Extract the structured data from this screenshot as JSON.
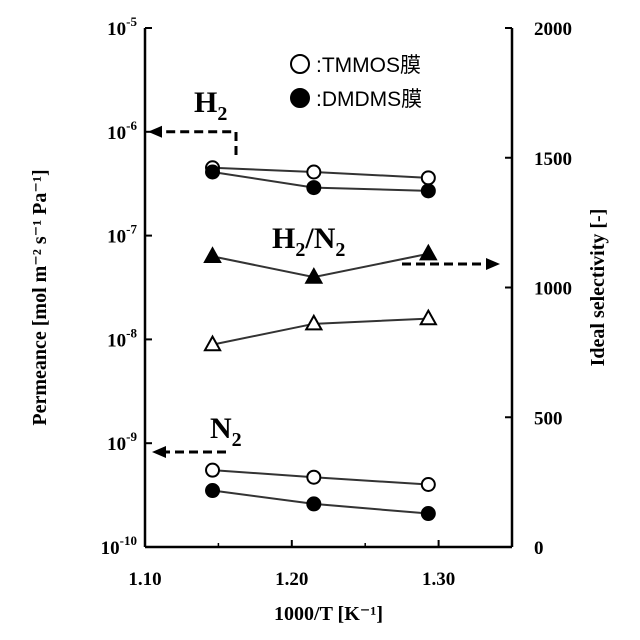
{
  "chart_data": {
    "type": "line",
    "xlabel": "1000/T [K⁻¹]",
    "xlim": [
      1.1,
      1.35
    ],
    "x_ticks": [
      "1.10",
      "1.20",
      "1.30"
    ],
    "x_tick_values": [
      1.1,
      1.2,
      1.3
    ],
    "ylabel_left": "Permeance [mol m⁻² s⁻¹ Pa⁻¹]",
    "y_left_scale": "log",
    "y_left_lim": [
      1e-10,
      1e-05
    ],
    "y_left_ticks": [
      {
        "base": "10",
        "exp": "-5"
      },
      {
        "base": "10",
        "exp": "-6"
      },
      {
        "base": "10",
        "exp": "-7"
      },
      {
        "base": "10",
        "exp": "-8"
      },
      {
        "base": "10",
        "exp": "-9"
      },
      {
        "base": "10",
        "exp": "-10"
      }
    ],
    "y_left_tick_values": [
      1e-05,
      1e-06,
      1e-07,
      1e-08,
      1e-09,
      1e-10
    ],
    "ylabel_right": "Ideal selectivity [-]",
    "y_right_scale": "linear",
    "y_right_lim": [
      0,
      2000
    ],
    "y_right_ticks": [
      "2000",
      "1500",
      "1000",
      "500",
      "0"
    ],
    "y_right_tick_values": [
      2000,
      1500,
      1000,
      500,
      0
    ],
    "x": [
      1.146,
      1.215,
      1.293
    ],
    "series": [
      {
        "name": "TMMOS膜",
        "group": "H2",
        "axis": "left",
        "marker": "circle-open",
        "values": [
          4.5e-07,
          4.1e-07,
          3.6e-07
        ]
      },
      {
        "name": "DMDMS膜",
        "group": "H2",
        "axis": "left",
        "marker": "circle-filled",
        "values": [
          4.1e-07,
          2.9e-07,
          2.7e-07
        ]
      },
      {
        "name": "TMMOS膜",
        "group": "H2/N2",
        "axis": "right",
        "marker": "triangle-open",
        "values": [
          780,
          860,
          880
        ]
      },
      {
        "name": "DMDMS膜",
        "group": "H2/N2",
        "axis": "right",
        "marker": "triangle-filled",
        "values": [
          1120,
          1040,
          1130
        ]
      },
      {
        "name": "TMMOS膜",
        "group": "N2",
        "axis": "left",
        "marker": "circle-open",
        "values": [
          5.5e-10,
          4.7e-10,
          4e-10
        ]
      },
      {
        "name": "DMDMS膜",
        "group": "N2",
        "axis": "left",
        "marker": "circle-filled",
        "values": [
          3.5e-10,
          2.6e-10,
          2.1e-10
        ]
      }
    ],
    "legend": {
      "placement": "top-right",
      "entries": [
        {
          "marker": "circle-open",
          "label": "TMMOS膜"
        },
        {
          "marker": "circle-filled",
          "label": "DMDMS膜"
        }
      ],
      "separator": ":"
    },
    "annotations": [
      {
        "id": "H2",
        "base": "H",
        "sub": "2",
        "arrow": "left"
      },
      {
        "id": "H2N2",
        "base1": "H",
        "sub1": "2",
        "slash": "/",
        "base2": "N",
        "sub2": "2",
        "arrow": "right"
      },
      {
        "id": "N2",
        "base": "N",
        "sub": "2",
        "arrow": "left"
      }
    ],
    "grid": false,
    "line_color": "#333333",
    "marker_color": "#000000"
  }
}
